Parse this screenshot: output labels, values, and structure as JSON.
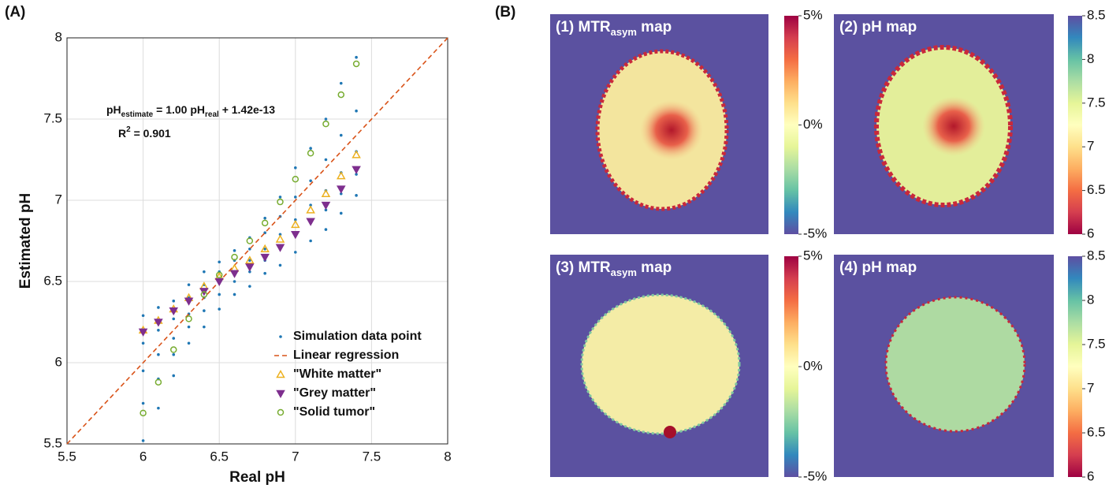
{
  "labels": [
    "(A)",
    "(B)"
  ],
  "chart_data": {
    "type": "scatter",
    "xlabel": "Real pH",
    "ylabel": "Estimated pH",
    "xlim": [
      5.5,
      8
    ],
    "ylim": [
      5.5,
      8
    ],
    "xticks": [
      5.5,
      6,
      6.5,
      7,
      7.5,
      8
    ],
    "yticks": [
      5.5,
      6,
      6.5,
      7,
      7.5,
      8
    ],
    "grid": true,
    "legend": "lower right",
    "equation": [
      "pH",
      "estimate",
      " = 1.00 pH",
      "real",
      " + 1.42e-13"
    ],
    "r2": [
      "R",
      "2",
      " = 0.901"
    ],
    "series": [
      {
        "name": "Simulation data point",
        "marker": "dot",
        "color": "#1f77b4",
        "x": [
          6,
          6,
          6,
          6,
          6,
          6.1,
          6.1,
          6.1,
          6.1,
          6.1,
          6.2,
          6.2,
          6.2,
          6.2,
          6.2,
          6.3,
          6.3,
          6.3,
          6.3,
          6.3,
          6.4,
          6.4,
          6.4,
          6.4,
          6.4,
          6.5,
          6.5,
          6.5,
          6.5,
          6.5,
          6.6,
          6.6,
          6.6,
          6.6,
          6.6,
          6.7,
          6.7,
          6.7,
          6.7,
          6.7,
          6.8,
          6.8,
          6.8,
          6.8,
          6.8,
          6.9,
          6.9,
          6.9,
          6.9,
          6.9,
          7,
          7,
          7,
          7,
          7,
          7.1,
          7.1,
          7.1,
          7.1,
          7.1,
          7.2,
          7.2,
          7.2,
          7.2,
          7.2,
          7.3,
          7.3,
          7.3,
          7.3,
          7.3,
          7.4,
          7.4,
          7.4,
          7.4,
          7.4
        ],
        "values": [
          5.52,
          5.75,
          5.95,
          6.12,
          6.29,
          5.72,
          5.9,
          6.05,
          6.2,
          6.34,
          5.92,
          6.05,
          6.15,
          6.27,
          6.38,
          6.12,
          6.22,
          6.3,
          6.4,
          6.48,
          6.22,
          6.32,
          6.4,
          6.48,
          6.56,
          6.33,
          6.42,
          6.49,
          6.56,
          6.62,
          6.42,
          6.5,
          6.56,
          6.63,
          6.69,
          6.47,
          6.56,
          6.63,
          6.7,
          6.77,
          6.55,
          6.63,
          6.7,
          6.8,
          6.89,
          6.6,
          6.7,
          6.79,
          6.9,
          7.02,
          6.68,
          6.78,
          6.88,
          7.02,
          7.2,
          6.75,
          6.86,
          6.97,
          7.12,
          7.32,
          6.82,
          6.94,
          7.06,
          7.25,
          7.5,
          6.92,
          7.04,
          7.17,
          7.4,
          7.72,
          7.03,
          7.16,
          7.3,
          7.55,
          7.88
        ]
      },
      {
        "name": "Linear regression",
        "marker": "dashed-line",
        "color": "#d95319",
        "x": [
          5.5,
          8
        ],
        "values": [
          5.5,
          8
        ]
      },
      {
        "name": "\"White matter\"",
        "marker": "triangle-up",
        "color": "#edb120",
        "x": [
          6,
          6.1,
          6.2,
          6.3,
          6.4,
          6.5,
          6.6,
          6.7,
          6.8,
          6.9,
          7,
          7.1,
          7.2,
          7.3,
          7.4
        ],
        "values": [
          6.2,
          6.26,
          6.33,
          6.4,
          6.47,
          6.53,
          6.58,
          6.63,
          6.7,
          6.76,
          6.85,
          6.94,
          7.04,
          7.15,
          7.28
        ]
      },
      {
        "name": "\"Grey matter\"",
        "marker": "triangle-down",
        "color": "#7e2f8e",
        "x": [
          6,
          6.1,
          6.2,
          6.3,
          6.4,
          6.5,
          6.6,
          6.7,
          6.8,
          6.9,
          7,
          7.1,
          7.2,
          7.3,
          7.4
        ],
        "values": [
          6.19,
          6.25,
          6.32,
          6.38,
          6.44,
          6.5,
          6.55,
          6.59,
          6.65,
          6.71,
          6.79,
          6.87,
          6.97,
          7.07,
          7.19
        ]
      },
      {
        "name": "\"Solid tumor\"",
        "marker": "circle",
        "color": "#77ac30",
        "x": [
          6,
          6.1,
          6.2,
          6.3,
          6.4,
          6.5,
          6.6,
          6.7,
          6.8,
          6.9,
          7,
          7.1,
          7.2,
          7.3,
          7.4
        ],
        "values": [
          5.69,
          5.88,
          6.08,
          6.27,
          6.42,
          6.54,
          6.65,
          6.75,
          6.86,
          6.99,
          7.13,
          7.29,
          7.47,
          7.65,
          7.84
        ]
      }
    ]
  },
  "maps": [
    {
      "title": [
        "(1) MTR",
        "asym",
        " map"
      ],
      "ylim": [
        -5,
        5
      ],
      "yticks": [
        {
          "value": 5,
          "label": "5%"
        },
        {
          "value": 0,
          "label": "0%"
        },
        {
          "value": -5,
          "label": "-5%"
        }
      ]
    },
    {
      "title": [
        "(2) pH map"
      ],
      "ylim": [
        6,
        8.5
      ],
      "yticks": [
        8.5,
        8,
        7.5,
        7,
        6.5,
        6
      ]
    },
    {
      "title": [
        "(3) MTR",
        "asym",
        " map"
      ],
      "ylim": [
        -5,
        5
      ],
      "yticks": [
        {
          "value": 5,
          "label": "5%"
        },
        {
          "value": 0,
          "label": "0%"
        },
        {
          "value": -5,
          "label": "-5%"
        }
      ]
    },
    {
      "title": [
        "(4) pH map"
      ],
      "ylim": [
        6,
        8.5
      ],
      "yticks": [
        8.5,
        8,
        7.5,
        7,
        6.5,
        6
      ]
    }
  ]
}
